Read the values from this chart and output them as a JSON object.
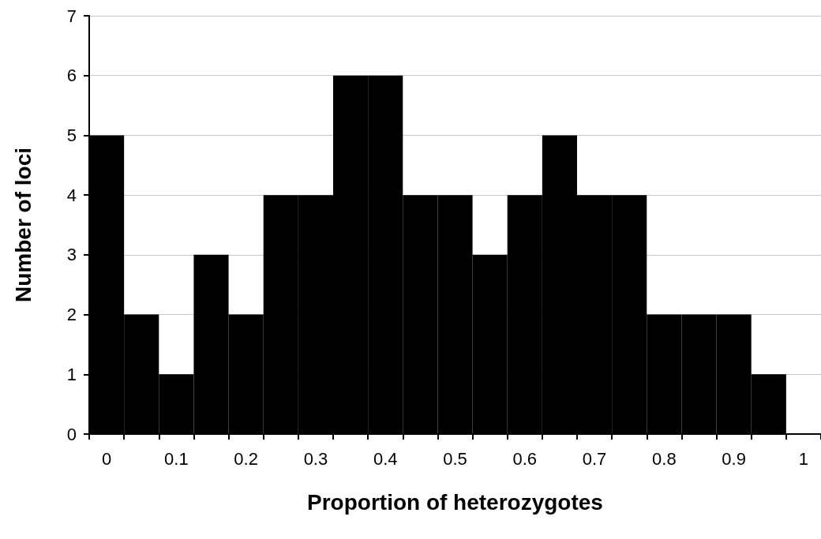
{
  "chart_data": {
    "type": "bar",
    "xlabel": "Proportion of heterozygotes",
    "ylabel": "Number of loci",
    "categories": [
      "0",
      null,
      "0.1",
      null,
      "0.2",
      null,
      "0.3",
      null,
      "0.4",
      null,
      "0.5",
      null,
      "0.6",
      null,
      "0.7",
      null,
      "0.8",
      null,
      "0.9",
      null,
      "1"
    ],
    "values": [
      5,
      2,
      1,
      3,
      2,
      4,
      4,
      6,
      6,
      4,
      4,
      3,
      4,
      5,
      4,
      4,
      2,
      2,
      2,
      1,
      0
    ],
    "color": "#000000",
    "ylim": [
      0,
      7
    ],
    "yticks": [
      0,
      1,
      2,
      3,
      4,
      5,
      6,
      7
    ],
    "grid": "y"
  }
}
